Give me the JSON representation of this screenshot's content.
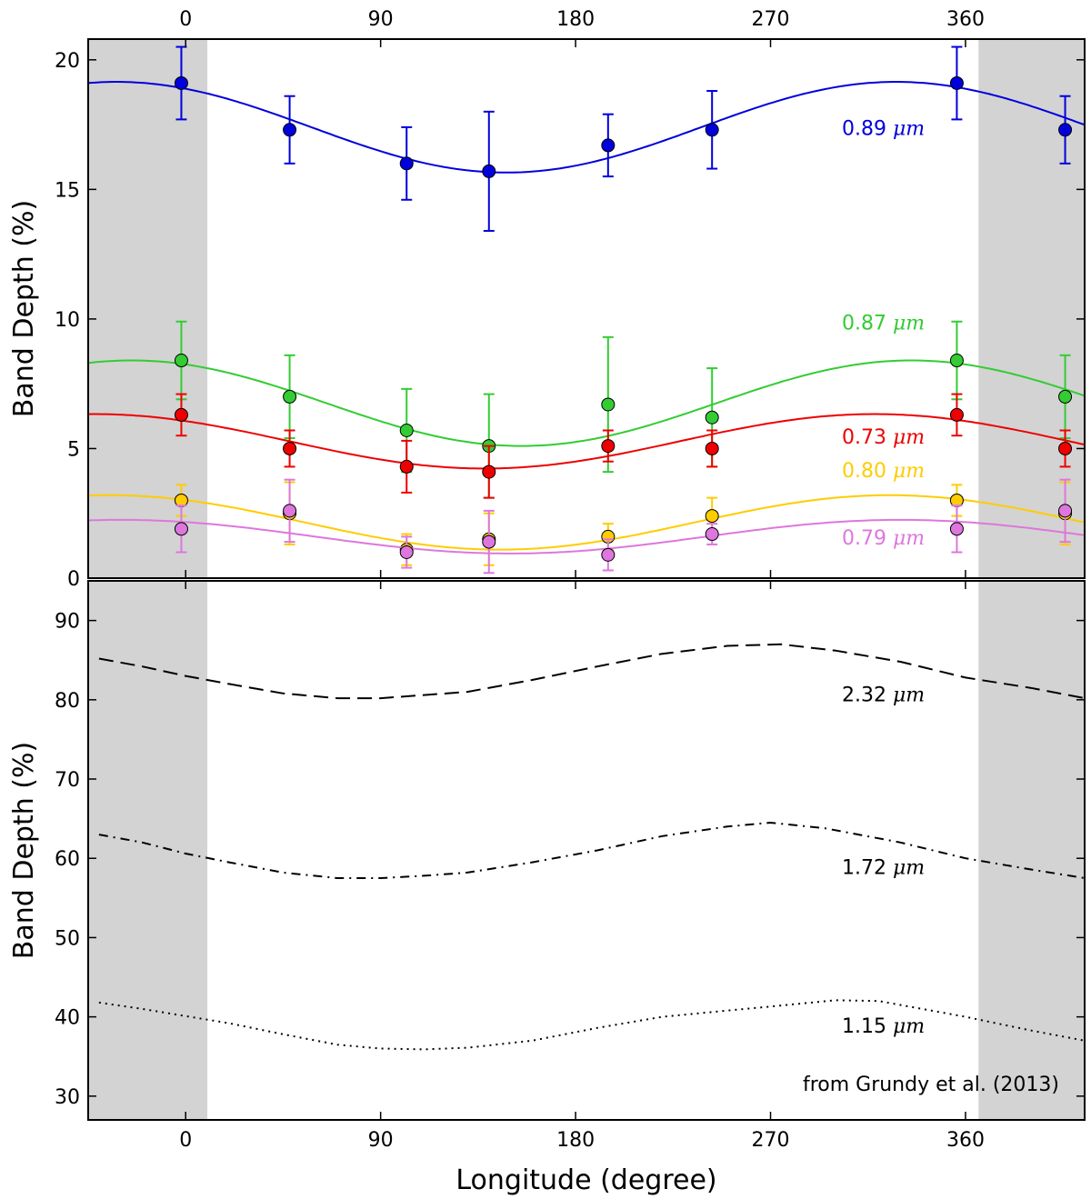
{
  "chart_data": [
    {
      "type": "scatter",
      "panel": "top",
      "ylabel": "Band Depth (%)",
      "xlim": [
        -45,
        415
      ],
      "ylim": [
        0,
        20.8
      ],
      "x_ticks": [
        0,
        90,
        180,
        270,
        360
      ],
      "y_ticks": [
        0,
        5,
        10,
        15,
        20
      ],
      "top_x_ticks": [
        0,
        90,
        180,
        270,
        360
      ],
      "shaded_regions": [
        [
          -45,
          10
        ],
        [
          366,
          415
        ]
      ],
      "grid": false,
      "series": [
        {
          "name": "0.89 μm",
          "label_text": "0.89",
          "unit": "μm",
          "color": "#0000dd",
          "label_y": 17.1,
          "points": [
            {
              "x": -2,
              "y": 19.1,
              "err": 1.4
            },
            {
              "x": 48,
              "y": 17.3,
              "err": 1.3
            },
            {
              "x": 102,
              "y": 16.0,
              "err": 1.4
            },
            {
              "x": 140,
              "y": 15.7,
              "err": 2.3
            },
            {
              "x": 195,
              "y": 16.7,
              "err": 1.2
            },
            {
              "x": 243,
              "y": 17.3,
              "err": 1.5
            },
            {
              "x": 356,
              "y": 19.1,
              "err": 1.4
            },
            {
              "x": 406,
              "y": 17.3,
              "err": 1.3
            }
          ],
          "fit": {
            "mean": 17.4,
            "amplitude": 1.75,
            "peak_longitude": 328
          }
        },
        {
          "name": "0.87 μm",
          "label_text": "0.87",
          "unit": "μm",
          "color": "#33cc33",
          "label_y": 9.6,
          "points": [
            {
              "x": -2,
              "y": 8.4,
              "err": 1.5
            },
            {
              "x": 48,
              "y": 7.0,
              "err": 1.6
            },
            {
              "x": 102,
              "y": 5.7,
              "err": 1.6
            },
            {
              "x": 140,
              "y": 5.1,
              "err": 2.0
            },
            {
              "x": 195,
              "y": 6.7,
              "err": 2.6
            },
            {
              "x": 243,
              "y": 6.2,
              "err": 1.9
            },
            {
              "x": 356,
              "y": 8.4,
              "err": 1.5
            },
            {
              "x": 406,
              "y": 7.0,
              "err": 1.6
            }
          ],
          "fit": {
            "mean": 6.75,
            "amplitude": 1.65,
            "peak_longitude": 335
          }
        },
        {
          "name": "0.73 μm",
          "label_text": "0.73",
          "unit": "μm",
          "color": "#ee0000",
          "label_y": 5.2,
          "points": [
            {
              "x": -2,
              "y": 6.3,
              "err": 0.8
            },
            {
              "x": 48,
              "y": 5.0,
              "err": 0.7
            },
            {
              "x": 102,
              "y": 4.3,
              "err": 1.0
            },
            {
              "x": 140,
              "y": 4.1,
              "err": 1.0
            },
            {
              "x": 195,
              "y": 5.1,
              "err": 0.6
            },
            {
              "x": 243,
              "y": 5.0,
              "err": 0.7
            },
            {
              "x": 356,
              "y": 6.3,
              "err": 0.8
            },
            {
              "x": 406,
              "y": 5.0,
              "err": 0.7
            }
          ],
          "fit": {
            "mean": 5.28,
            "amplitude": 1.05,
            "peak_longitude": 318
          }
        },
        {
          "name": "0.80 μm",
          "label_text": "0.80",
          "unit": "μm",
          "color": "#ffcc00",
          "label_y": 3.9,
          "points": [
            {
              "x": -2,
              "y": 3.0,
              "err": 0.6
            },
            {
              "x": 48,
              "y": 2.5,
              "err": 1.2
            },
            {
              "x": 102,
              "y": 1.1,
              "err": 0.6
            },
            {
              "x": 140,
              "y": 1.5,
              "err": 1.0
            },
            {
              "x": 195,
              "y": 1.6,
              "err": 0.5
            },
            {
              "x": 243,
              "y": 2.4,
              "err": 0.7
            },
            {
              "x": 356,
              "y": 3.0,
              "err": 0.6
            },
            {
              "x": 406,
              "y": 2.5,
              "err": 1.2
            }
          ],
          "fit": {
            "mean": 2.15,
            "amplitude": 1.05,
            "peak_longitude": 325
          }
        },
        {
          "name": "0.79 μm",
          "label_text": "0.79",
          "unit": "μm",
          "color": "#dd77dd",
          "label_y": 1.3,
          "points": [
            {
              "x": -2,
              "y": 1.9,
              "err": 0.9
            },
            {
              "x": 48,
              "y": 2.6,
              "err": 1.2
            },
            {
              "x": 102,
              "y": 1.0,
              "err": 0.6
            },
            {
              "x": 140,
              "y": 1.4,
              "err": 1.2
            },
            {
              "x": 195,
              "y": 0.9,
              "err": 0.6
            },
            {
              "x": 243,
              "y": 1.7,
              "err": 0.4
            },
            {
              "x": 356,
              "y": 1.9,
              "err": 0.9
            },
            {
              "x": 406,
              "y": 2.6,
              "err": 1.2
            }
          ],
          "fit": {
            "mean": 1.6,
            "amplitude": 0.65,
            "peak_longitude": 330
          }
        }
      ]
    },
    {
      "type": "line",
      "panel": "bottom",
      "xlabel": "Longitude (degree)",
      "ylabel": "Band Depth (%)",
      "xlim": [
        -45,
        415
      ],
      "ylim": [
        27,
        95
      ],
      "x_ticks": [
        0,
        90,
        180,
        270,
        360
      ],
      "y_ticks": [
        30,
        40,
        50,
        60,
        70,
        80,
        90
      ],
      "shaded_regions": [
        [
          -45,
          10
        ],
        [
          366,
          415
        ]
      ],
      "grid": false,
      "annotation": "from Grundy et al. (2013)",
      "series": [
        {
          "name": "2.32 μm",
          "label_text": "2.32",
          "unit": "μm",
          "color": "#000000",
          "style": "dashed",
          "label_y": 79.8,
          "x": [
            -40,
            -20,
            0,
            20,
            45,
            70,
            90,
            110,
            130,
            160,
            190,
            220,
            250,
            275,
            300,
            330,
            360,
            390,
            415
          ],
          "y": [
            85.2,
            84.2,
            83.0,
            82.0,
            80.8,
            80.2,
            80.2,
            80.6,
            81.0,
            82.5,
            84.2,
            85.8,
            86.8,
            87.0,
            86.2,
            84.8,
            82.8,
            81.5,
            80.2
          ]
        },
        {
          "name": "1.72 μm",
          "label_text": "1.72",
          "unit": "μm",
          "color": "#000000",
          "style": "dashdot",
          "label_y": 58.0,
          "x": [
            -40,
            -20,
            0,
            20,
            45,
            70,
            90,
            110,
            130,
            160,
            190,
            220,
            250,
            270,
            295,
            330,
            360,
            390,
            415
          ],
          "y": [
            63.0,
            62.0,
            60.6,
            59.5,
            58.2,
            57.5,
            57.5,
            57.8,
            58.2,
            59.5,
            61.0,
            62.8,
            64.0,
            64.5,
            63.8,
            62.0,
            60.0,
            58.6,
            57.5
          ]
        },
        {
          "name": "1.15 μm",
          "label_text": "1.15",
          "unit": "μm",
          "color": "#000000",
          "style": "dotted",
          "label_y": 38.0,
          "x": [
            -40,
            -20,
            0,
            20,
            45,
            70,
            90,
            110,
            130,
            160,
            190,
            220,
            250,
            270,
            300,
            320,
            360,
            390,
            415
          ],
          "y": [
            41.8,
            41.0,
            40.1,
            39.2,
            37.8,
            36.5,
            36.0,
            35.9,
            36.1,
            37.0,
            38.6,
            40.0,
            40.8,
            41.3,
            42.1,
            42.0,
            40.0,
            38.3,
            37.0
          ]
        }
      ]
    }
  ]
}
